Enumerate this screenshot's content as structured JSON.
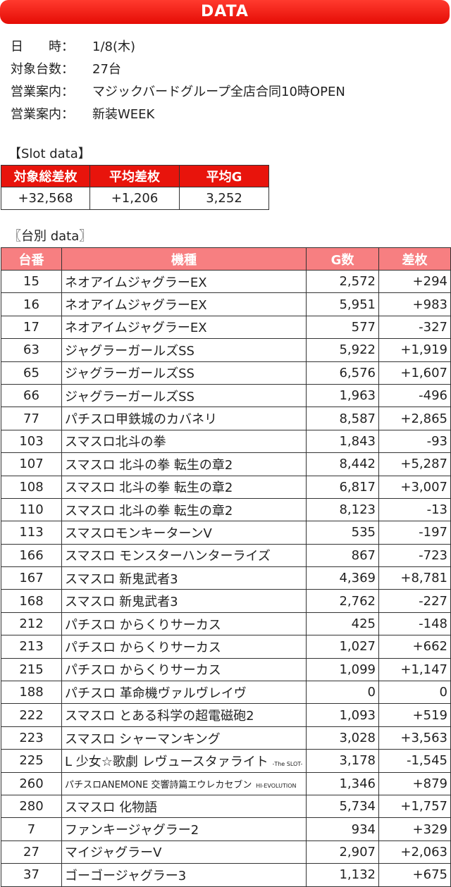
{
  "banner": "DATA",
  "info": [
    {
      "label": "日　　時：",
      "value": "1/8(木)"
    },
    {
      "label": "対象台数：",
      "value": "27台"
    },
    {
      "label": "営業案内：",
      "value": "マジックバードグループ全店合同10時OPEN"
    },
    {
      "label": "営業案内：",
      "value": "新装WEEK"
    }
  ],
  "slot_title": "【Slot data】",
  "slot_headers": [
    "対象総差枚",
    "平均差枚",
    "平均G"
  ],
  "slot_values": [
    "+32,568",
    "+1,206",
    "3,252"
  ],
  "table_title": "〖台別 data〗",
  "table_headers": [
    "台番",
    "機種",
    "G数",
    "差枚"
  ],
  "rows": [
    {
      "no": "15",
      "name": "ネオアイムジャグラーEX",
      "g": "2,572",
      "diff": "+294"
    },
    {
      "no": "16",
      "name": "ネオアイムジャグラーEX",
      "g": "5,951",
      "diff": "+983"
    },
    {
      "no": "17",
      "name": "ネオアイムジャグラーEX",
      "g": "577",
      "diff": "-327"
    },
    {
      "no": "63",
      "name": "ジャグラーガールズSS",
      "g": "5,922",
      "diff": "+1,919"
    },
    {
      "no": "65",
      "name": "ジャグラーガールズSS",
      "g": "6,576",
      "diff": "+1,607"
    },
    {
      "no": "66",
      "name": "ジャグラーガールズSS",
      "g": "1,963",
      "diff": "-496"
    },
    {
      "no": "77",
      "name": "パチスロ甲鉄城のカバネリ",
      "g": "8,587",
      "diff": "+2,865"
    },
    {
      "no": "103",
      "name": "スマスロ北斗の拳",
      "g": "1,843",
      "diff": "-93"
    },
    {
      "no": "107",
      "name": "スマスロ 北斗の拳 転生の章2",
      "g": "8,442",
      "diff": "+5,287"
    },
    {
      "no": "108",
      "name": "スマスロ 北斗の拳 転生の章2",
      "g": "6,817",
      "diff": "+3,007"
    },
    {
      "no": "110",
      "name": "スマスロ 北斗の拳 転生の章2",
      "g": "8,123",
      "diff": "-13"
    },
    {
      "no": "113",
      "name": "スマスロモンキーターンV",
      "g": "535",
      "diff": "-197"
    },
    {
      "no": "166",
      "name": "スマスロ モンスターハンターライズ",
      "g": "867",
      "diff": "-723"
    },
    {
      "no": "167",
      "name": "スマスロ 新鬼武者3",
      "g": "4,369",
      "diff": "+8,781"
    },
    {
      "no": "168",
      "name": "スマスロ 新鬼武者3",
      "g": "2,762",
      "diff": "-227"
    },
    {
      "no": "212",
      "name": "パチスロ からくりサーカス",
      "g": "425",
      "diff": "-148"
    },
    {
      "no": "213",
      "name": "パチスロ からくりサーカス",
      "g": "1,027",
      "diff": "+662"
    },
    {
      "no": "215",
      "name": "パチスロ からくりサーカス",
      "g": "1,099",
      "diff": "+1,147"
    },
    {
      "no": "188",
      "name": "パチスロ 革命機ヴァルヴレイヴ",
      "g": "0",
      "diff": "0"
    },
    {
      "no": "222",
      "name": "スマスロ とある科学の超電磁砲2",
      "g": "1,093",
      "diff": "+519"
    },
    {
      "no": "223",
      "name": "スマスロ シャーマンキング",
      "g": "3,028",
      "diff": "+3,563"
    },
    {
      "no": "225",
      "name": "L 少女☆歌劇 レヴュースタァライト",
      "suffix": "-The SLOT-",
      "g": "3,178",
      "diff": "-1,545"
    },
    {
      "no": "260",
      "name": "パチスロANEMONE 交響詩篇エウレカセブン",
      "suffix": "HI-EVOLUTION",
      "small": true,
      "g": "1,346",
      "diff": "+879"
    },
    {
      "no": "280",
      "name": "スマスロ 化物語",
      "g": "5,734",
      "diff": "+1,757"
    },
    {
      "no": "7",
      "name": "ファンキージャグラー2",
      "g": "934",
      "diff": "+329"
    },
    {
      "no": "27",
      "name": "マイジャグラーV",
      "g": "2,907",
      "diff": "+2,063"
    },
    {
      "no": "37",
      "name": "ゴーゴージャグラー3",
      "g": "1,132",
      "diff": "+675"
    }
  ]
}
